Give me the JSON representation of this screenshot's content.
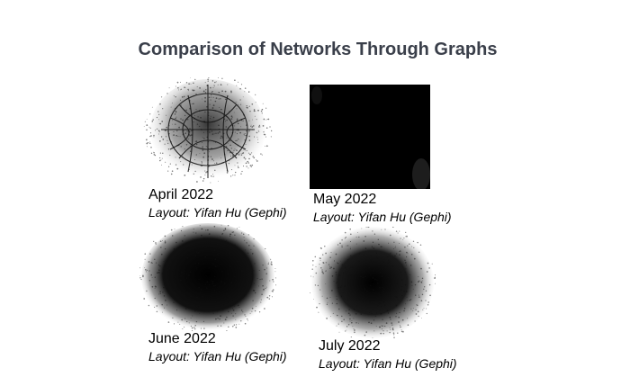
{
  "slide": {
    "title": "Comparison of Networks Through Graphs"
  },
  "panels": [
    {
      "date": "April 2022",
      "layout": "Layout: Yifan Hu (Gephi)"
    },
    {
      "date": "May 2022",
      "layout": "Layout: Yifan Hu (Gephi)"
    },
    {
      "date": "June 2022",
      "layout": "Layout: Yifan Hu (Gephi)"
    },
    {
      "date": "July 2022",
      "layout": "Layout: Yifan Hu (Gephi)"
    }
  ],
  "colors": {
    "title": "#3a3f4a",
    "ink": "#000000",
    "background": "#ffffff"
  }
}
